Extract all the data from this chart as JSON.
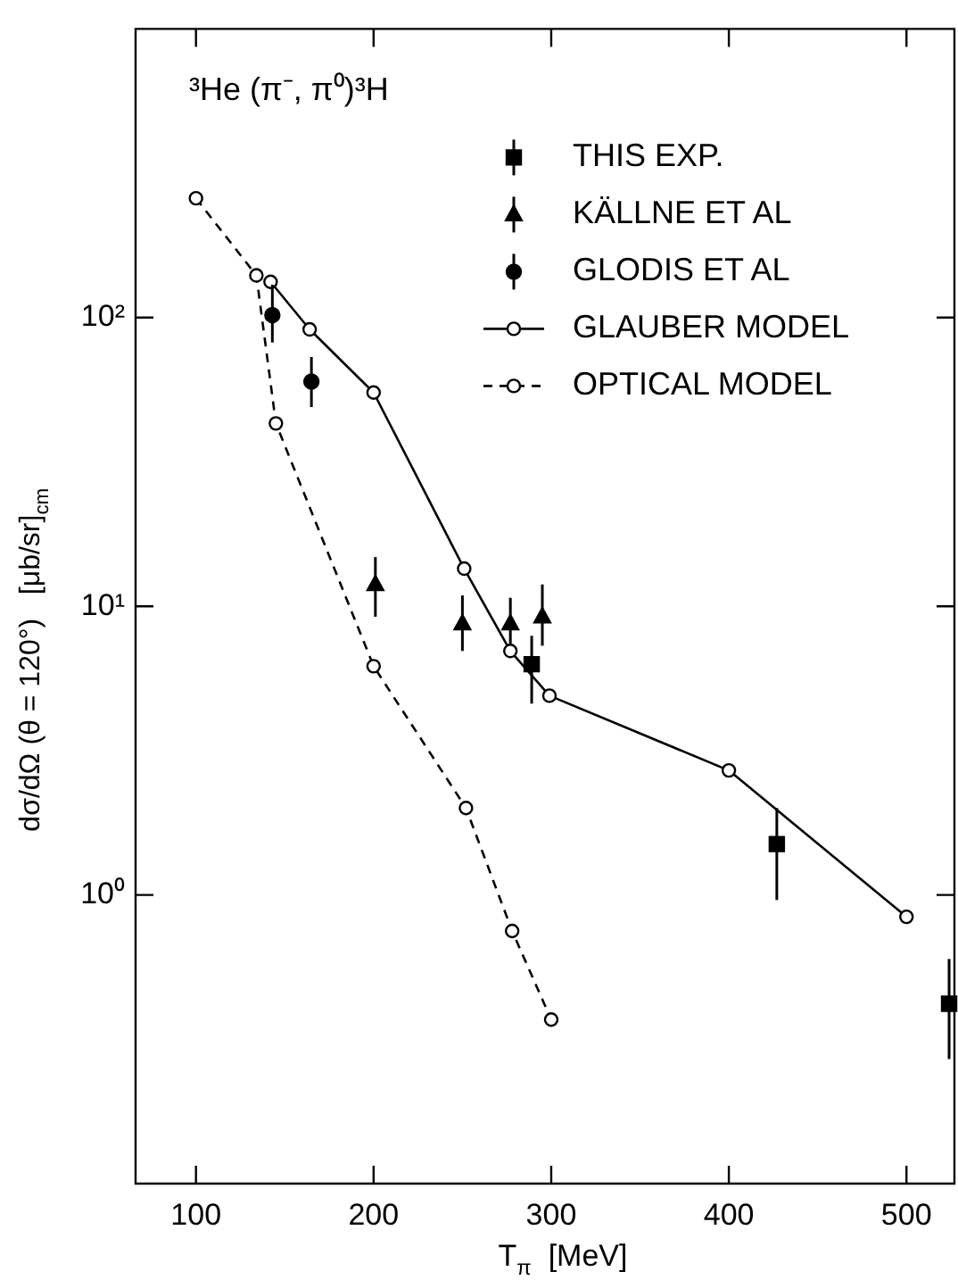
{
  "chart_data": {
    "type": "line",
    "xlabel": "T$_{π}$  [MeV]",
    "ylabel": "dσ/dΩ (θ = 120°)   [μb/sr]$_{cm}$",
    "annotations": [
      "³He (π⁻, π⁰)³H"
    ],
    "xlim": [
      66,
      527
    ],
    "xticks": [
      100,
      200,
      300,
      400,
      500
    ],
    "ylim": [
      0.1,
      1000
    ],
    "yticks": [
      {
        "value": 1,
        "label": "10⁰"
      },
      {
        "value": 10,
        "label": "10¹"
      },
      {
        "value": 100,
        "label": "10²"
      }
    ],
    "log": "y",
    "grid": false,
    "legend": "top right",
    "series": [
      {
        "name": "THIS EXP.",
        "type": "scatter",
        "marker": "square",
        "color": "#000000",
        "x": [
          289,
          427,
          524
        ],
        "values": [
          6.3,
          1.5,
          0.42
        ],
        "errors": [
          [
            4.6,
            7.9
          ],
          [
            0.96,
            2.0
          ],
          [
            0.27,
            0.6
          ]
        ]
      },
      {
        "name": "KÄLLNE ET AL",
        "type": "scatter",
        "marker": "triangle",
        "color": "#000000",
        "x": [
          201,
          250,
          277,
          295
        ],
        "values": [
          11.9,
          8.7,
          8.7,
          9.2
        ],
        "errors": [
          [
            9.2,
            14.8
          ],
          [
            7.0,
            10.9
          ],
          [
            7.4,
            10.7
          ],
          [
            7.3,
            11.9
          ]
        ]
      },
      {
        "name": "GLODIS ET AL",
        "type": "scatter",
        "marker": "circle",
        "color": "#000000",
        "x": [
          143,
          165
        ],
        "values": [
          102,
          60
        ],
        "errors": [
          [
            82,
            130
          ],
          [
            49,
            73
          ]
        ]
      },
      {
        "name": "GLAUBER MODEL",
        "type": "line",
        "marker": "circle",
        "line_style": "solid",
        "color": "#000000",
        "x": [
          142,
          164,
          200,
          251,
          277,
          299,
          400,
          500
        ],
        "values": [
          133,
          91,
          55,
          13.5,
          7.0,
          4.9,
          2.7,
          0.84
        ]
      },
      {
        "name": "OPTICAL MODEL",
        "type": "line",
        "marker": "circle",
        "line_style": "dashed",
        "color": "#000000",
        "x": [
          100,
          134,
          145,
          200,
          252,
          278,
          300
        ],
        "values": [
          259,
          140,
          43,
          6.2,
          2.0,
          0.75,
          0.37
        ]
      }
    ]
  }
}
